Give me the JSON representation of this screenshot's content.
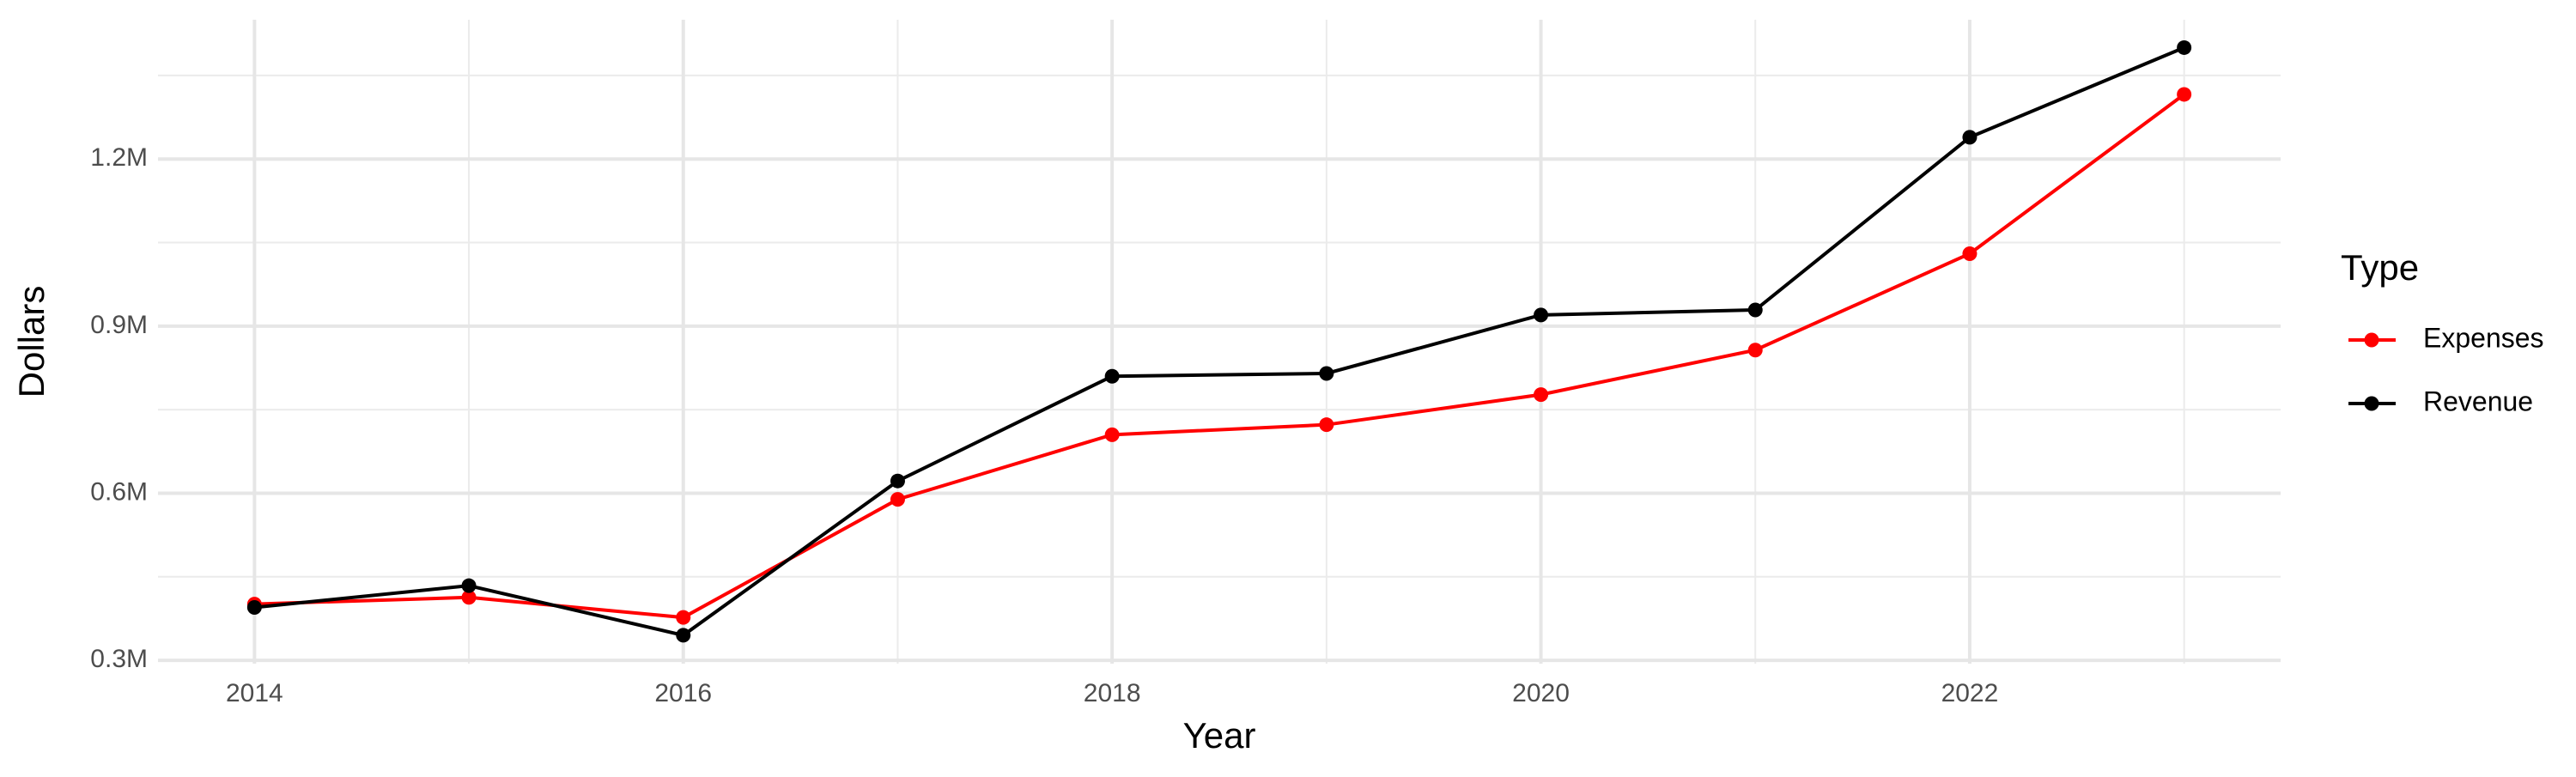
{
  "chart_data": {
    "type": "line",
    "x_label": "Year",
    "y_label": "Dollars",
    "legend_title": "Type",
    "legend_position": "right",
    "grid": true,
    "x": [
      2014,
      2015,
      2016,
      2017,
      2018,
      2019,
      2020,
      2021,
      2022,
      2023
    ],
    "xlim": [
      2013.55,
      2023.45
    ],
    "xticks": [
      2014,
      2016,
      2018,
      2020,
      2022
    ],
    "ylim": [
      294000,
      1450000
    ],
    "yticks": [
      {
        "value": 300000,
        "label": "0.3M"
      },
      {
        "value": 600000,
        "label": "0.6M"
      },
      {
        "value": 900000,
        "label": "0.9M"
      },
      {
        "value": 1200000,
        "label": "1.2M"
      }
    ],
    "series": [
      {
        "name": "Expenses",
        "color": "#ff0000",
        "values": [
          401000,
          413000,
          377000,
          589000,
          705000,
          723000,
          777000,
          857000,
          1030000,
          1316000
        ]
      },
      {
        "name": "Revenue",
        "color": "#000000",
        "values": [
          395000,
          434000,
          345000,
          622000,
          810000,
          815000,
          920000,
          929000,
          1239000,
          1400000
        ]
      }
    ]
  }
}
